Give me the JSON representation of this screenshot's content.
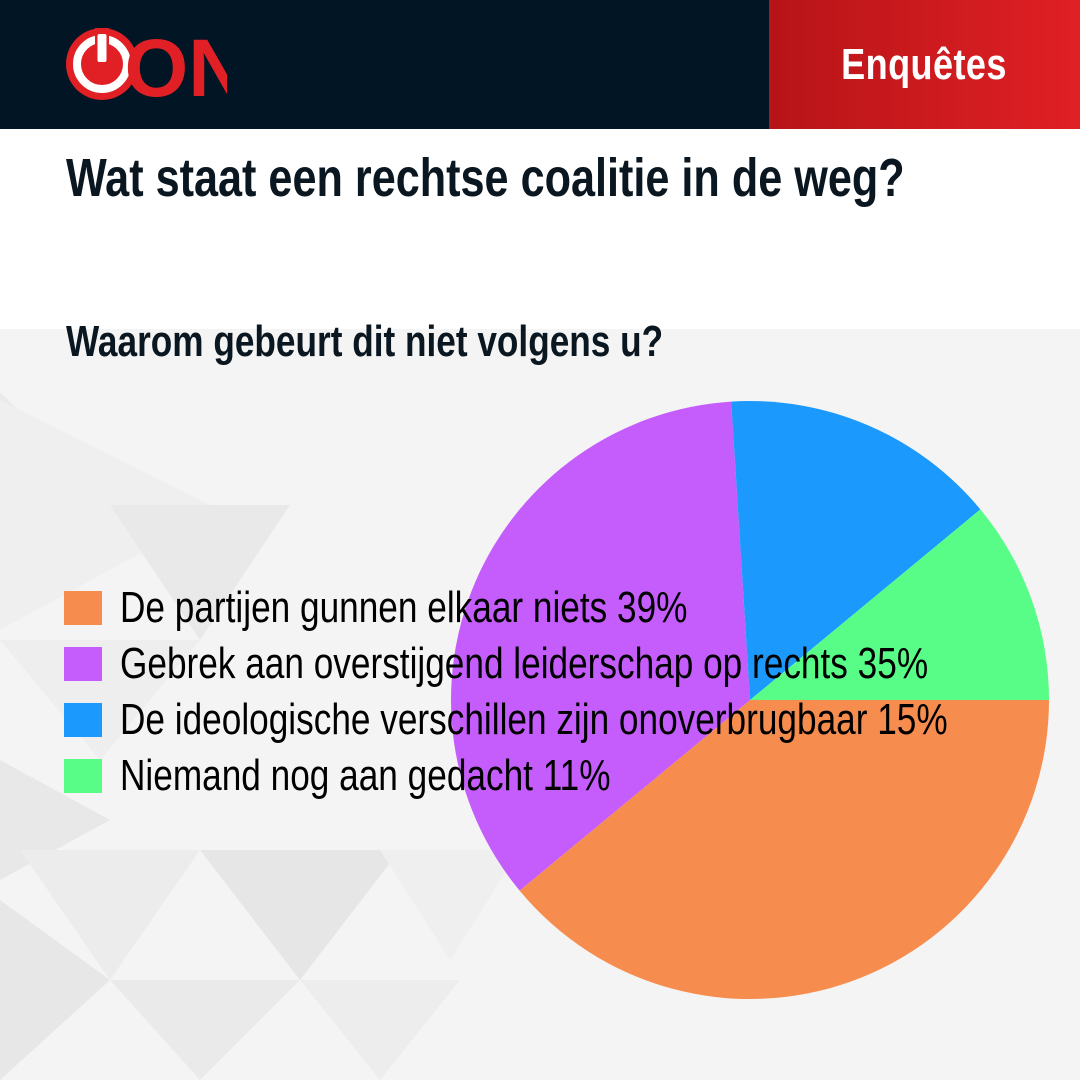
{
  "brand": {
    "logo_text": "ON",
    "logo_icon": "power-icon",
    "colors": {
      "navy": "#011524",
      "red": "#e02024"
    }
  },
  "header": {
    "section_label": "Enquêtes"
  },
  "title": "Wat staat een rechtse coalitie in de weg?",
  "subtitle": "Waarom gebeurt dit niet volgens u?",
  "chart_data": {
    "type": "pie",
    "title": "Waarom gebeurt dit niet volgens u?",
    "legend_position": "left",
    "unit": "%",
    "slices": [
      {
        "label": "De partijen gunnen elkaar niets",
        "value": 39,
        "display": "39%",
        "color": "#f68d4f"
      },
      {
        "label": "Gebrek aan overstijgend leiderschap op rechts",
        "value": 35,
        "display": "35%",
        "color": "#c55cfc"
      },
      {
        "label": "De ideologische verschillen zijn onoverbrugbaar",
        "value": 15,
        "display": "15%",
        "color": "#1b99fc"
      },
      {
        "label": "Niemand nog aan gedacht",
        "value": 11,
        "display": "11%",
        "color": "#58fd87"
      }
    ]
  },
  "legend": [
    {
      "text": "De partijen gunnen elkaar niets 39%",
      "color": "#f68d4f"
    },
    {
      "text": "Gebrek aan overstijgend leiderschap op rechts 35%",
      "color": "#c55cfc"
    },
    {
      "text": "De ideologische verschillen zijn onoverbrugbaar 15%",
      "color": "#1b99fc"
    },
    {
      "text": "Niemand nog aan gedacht 11%",
      "color": "#58fd87"
    }
  ]
}
